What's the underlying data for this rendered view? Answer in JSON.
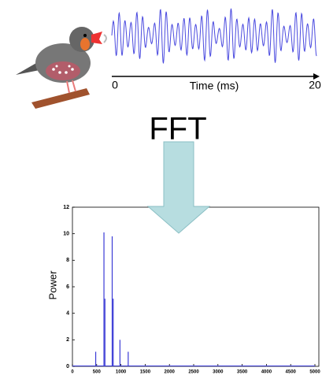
{
  "waveform": {
    "x_start": "0",
    "x_label": "Time (ms)",
    "x_end": "20"
  },
  "transform_label": "FFT",
  "chart_data": {
    "type": "stem",
    "ylabel": "Power",
    "x": [
      480,
      650,
      670,
      820,
      840,
      980,
      1150
    ],
    "values": [
      1.1,
      10.1,
      5.1,
      9.8,
      5.1,
      2.0,
      1.1
    ],
    "color": "#3b3bd6",
    "xlim": [
      0,
      5000
    ],
    "ylim": [
      0,
      12
    ],
    "xticks": [
      0,
      500,
      1000,
      1500,
      2000,
      2500,
      3000,
      3500,
      4000,
      4500,
      5000
    ],
    "yticks": [
      0,
      2,
      4,
      6,
      8,
      10,
      12
    ]
  }
}
